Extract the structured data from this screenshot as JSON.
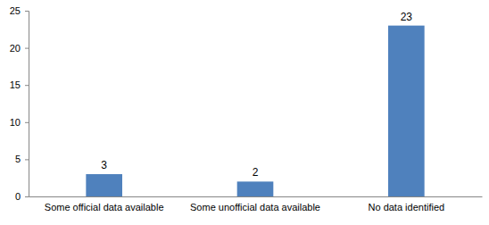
{
  "chart_data": {
    "type": "bar",
    "categories": [
      "Some official data available",
      "Some unofficial data available",
      "No data identified"
    ],
    "values": [
      3,
      2,
      23
    ],
    "color": "#4f81bd",
    "ylim": [
      0,
      25
    ],
    "yticks": [
      0,
      5,
      10,
      15,
      20,
      25
    ],
    "grid": false,
    "data_labels": true
  }
}
